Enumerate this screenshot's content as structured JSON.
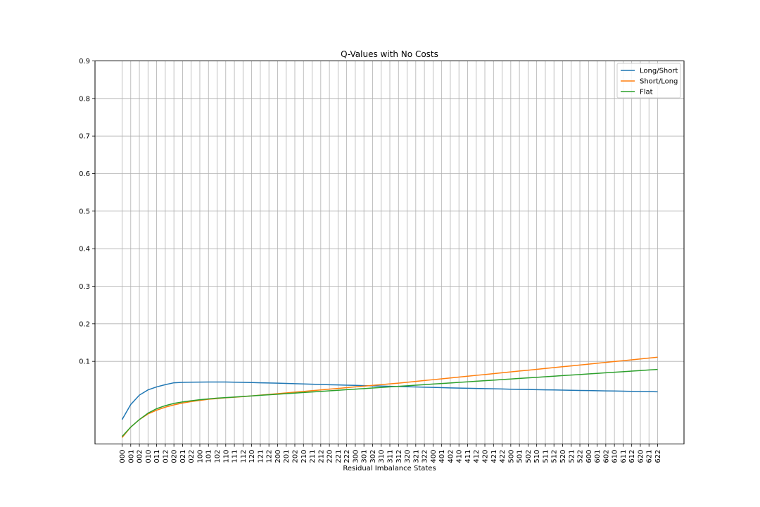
{
  "chart_data": {
    "type": "line",
    "title": "Q-Values with No Costs",
    "xlabel": "Residual Imbalance States",
    "ylabel": "",
    "ylim": [
      -0.12,
      0.9
    ],
    "yticks": [
      "0.1",
      "0.2",
      "0.3",
      "0.4",
      "0.5",
      "0.6",
      "0.7",
      "0.8",
      "0.9"
    ],
    "grid": true,
    "legend_position": "top-right",
    "categories": [
      "000",
      "001",
      "002",
      "010",
      "011",
      "012",
      "020",
      "021",
      "022",
      "100",
      "101",
      "102",
      "110",
      "111",
      "112",
      "120",
      "121",
      "122",
      "200",
      "201",
      "202",
      "210",
      "211",
      "212",
      "220",
      "221",
      "222",
      "300",
      "301",
      "302",
      "310",
      "311",
      "312",
      "320",
      "321",
      "322",
      "400",
      "401",
      "402",
      "410",
      "411",
      "412",
      "420",
      "421",
      "422",
      "500",
      "501",
      "502",
      "510",
      "511",
      "512",
      "520",
      "521",
      "522",
      "600",
      "601",
      "602",
      "610",
      "611",
      "612",
      "620",
      "621",
      "622"
    ],
    "series": [
      {
        "name": "Long/Short",
        "color": "#1f77b4",
        "values": [
          -0.055,
          -0.015,
          0.01,
          0.024,
          0.032,
          0.038,
          0.043,
          0.044,
          0.0445,
          0.0448,
          0.045,
          0.045,
          0.045,
          0.0445,
          0.044,
          0.0435,
          0.043,
          0.0425,
          0.042,
          0.0413,
          0.0406,
          0.0399,
          0.0392,
          0.0385,
          0.0378,
          0.0372,
          0.0366,
          0.036,
          0.0354,
          0.0348,
          0.0342,
          0.0336,
          0.033,
          0.0324,
          0.0318,
          0.0312,
          0.0306,
          0.03,
          0.0294,
          0.0289,
          0.0284,
          0.0279,
          0.0274,
          0.0269,
          0.0264,
          0.0259,
          0.0254,
          0.025,
          0.0246,
          0.0242,
          0.0238,
          0.0234,
          0.023,
          0.0226,
          0.0222,
          0.0218,
          0.0214,
          0.021,
          0.0206,
          0.0202,
          0.0198,
          0.0194,
          0.019
        ]
      },
      {
        "name": "Short/Long",
        "color": "#ff7f0e",
        "values": [
          -0.103,
          -0.075,
          -0.055,
          -0.04,
          -0.03,
          -0.022,
          -0.016,
          -0.011,
          -0.007,
          -0.004,
          -0.001,
          0.001,
          0.003,
          0.0045,
          0.006,
          0.008,
          0.01,
          0.012,
          0.014,
          0.016,
          0.018,
          0.02,
          0.022,
          0.024,
          0.026,
          0.028,
          0.03,
          0.032,
          0.034,
          0.036,
          0.038,
          0.04,
          0.042,
          0.0443,
          0.0466,
          0.0489,
          0.0512,
          0.0535,
          0.0558,
          0.0581,
          0.0604,
          0.0627,
          0.065,
          0.0673,
          0.0696,
          0.0719,
          0.0742,
          0.0765,
          0.0788,
          0.0811,
          0.0834,
          0.0857,
          0.088,
          0.0903,
          0.0926,
          0.0949,
          0.0972,
          0.0995,
          0.1018,
          0.1041,
          0.1064,
          0.1087,
          0.111
        ]
      },
      {
        "name": "Flat",
        "color": "#2ca02c",
        "values": [
          -0.1,
          -0.075,
          -0.055,
          -0.038,
          -0.026,
          -0.018,
          -0.012,
          -0.008,
          -0.005,
          -0.002,
          0.0,
          0.002,
          0.0035,
          0.005,
          0.0065,
          0.008,
          0.0095,
          0.011,
          0.0125,
          0.014,
          0.0155,
          0.017,
          0.0185,
          0.02,
          0.0215,
          0.023,
          0.0245,
          0.026,
          0.0275,
          0.029,
          0.0305,
          0.032,
          0.0335,
          0.035,
          0.0365,
          0.038,
          0.0395,
          0.041,
          0.0425,
          0.044,
          0.0455,
          0.047,
          0.0485,
          0.05,
          0.0515,
          0.053,
          0.0545,
          0.056,
          0.0575,
          0.059,
          0.0605,
          0.062,
          0.0635,
          0.065,
          0.0665,
          0.068,
          0.0695,
          0.071,
          0.0725,
          0.074,
          0.0755,
          0.077,
          0.0785
        ]
      }
    ]
  }
}
